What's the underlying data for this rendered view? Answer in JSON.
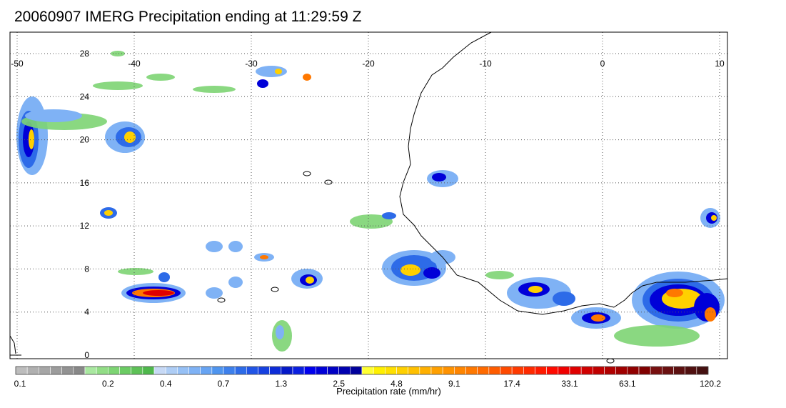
{
  "title": "20060907 IMERG Precipitation ending at 11:29:59 Z",
  "map": {
    "lon_range": [
      -51,
      10
    ],
    "lat_range": [
      -0.5,
      30
    ],
    "lon_ticks": [
      "-50",
      "-40",
      "-30",
      "-20",
      "-10",
      "0",
      "10"
    ],
    "lat_ticks": [
      "0",
      "4",
      "8",
      "12",
      "16",
      "20",
      "24",
      "28"
    ],
    "gridlines": "dotted",
    "coastline_color": "#000000"
  },
  "colorbar": {
    "label": "Precipitation rate (mm/hr)",
    "tick_labels": [
      "0.1",
      "0.2",
      "0.4",
      "0.7",
      "1.3",
      "2.5",
      "4.8",
      "9.1",
      "17.4",
      "33.1",
      "63.1",
      "120.2"
    ],
    "colors": [
      "#bdbdbd",
      "#b0b0b0",
      "#a6a6a6",
      "#9c9c9c",
      "#929292",
      "#888888",
      "#a9e8a0",
      "#92dd86",
      "#7dd473",
      "#6bcb63",
      "#5ec157",
      "#4fb84c",
      "#c7d9f5",
      "#aecdf5",
      "#96c0f5",
      "#7fb2f5",
      "#67a4f3",
      "#4f95ef",
      "#3d80ec",
      "#2d6be8",
      "#2155e6",
      "#1640e0",
      "#0d2cd8",
      "#0519c8",
      "#0a1fe0",
      "#0000ee",
      "#0000d8",
      "#0000c4",
      "#0000b0",
      "#00009c",
      "#ffff33",
      "#fff000",
      "#ffe000",
      "#ffd000",
      "#ffc000",
      "#ffb000",
      "#ffa000",
      "#ff9200",
      "#ff8500",
      "#ff7800",
      "#ff6a00",
      "#ff5c00",
      "#ff4a00",
      "#ff3a00",
      "#ff2a00",
      "#ff1a00",
      "#ff0a00",
      "#f00000",
      "#e00000",
      "#d00000",
      "#c00000",
      "#b00000",
      "#a00000",
      "#900000",
      "#800000",
      "#781010",
      "#6a1010",
      "#5c1010",
      "#501010",
      "#441010"
    ]
  }
}
